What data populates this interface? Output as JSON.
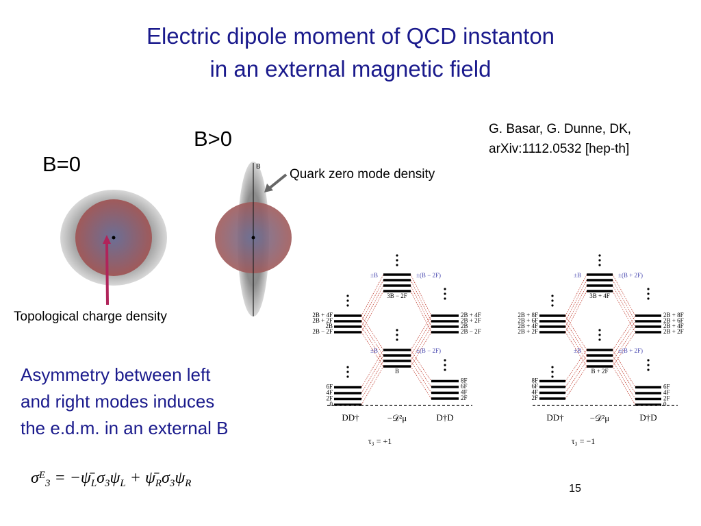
{
  "header": {
    "title_lines": [
      "Electric dipole moment of QCD instanton",
      "in an external magnetic field"
    ]
  },
  "citation": [
    "G. Basar, G. Dunne, DK,",
    "arXiv:1112.0532 [hep-th]"
  ],
  "instanton": {
    "b_zero": "B=0",
    "b_positive": "B>0",
    "axis_label": "B",
    "quark_label": "Quark zero mode density",
    "topo_label": "Topological charge density"
  },
  "body": [
    "Asymmetry between left",
    "and right modes induces",
    "the e.d.m. in an external B"
  ],
  "formula": [
    {
      "text": "σ",
      "pos": "base"
    },
    {
      "text": "E",
      "pos": "sup"
    },
    {
      "text": "3",
      "pos": "sub"
    },
    {
      "text": " = −ψ̄",
      "pos": "base"
    },
    {
      "text": "L",
      "pos": "sub"
    },
    {
      "text": "σ",
      "pos": "base"
    },
    {
      "text": "3",
      "pos": "sub"
    },
    {
      "text": "ψ",
      "pos": "base"
    },
    {
      "text": "L",
      "pos": "sub"
    },
    {
      "text": " + ψ̄",
      "pos": "base"
    },
    {
      "text": "R",
      "pos": "sub"
    },
    {
      "text": "σ",
      "pos": "base"
    },
    {
      "text": "3",
      "pos": "sub"
    },
    {
      "text": "ψ",
      "pos": "base"
    },
    {
      "text": "R",
      "pos": "sub"
    }
  ],
  "page_number": "15",
  "diagrams": [
    {
      "caption": "τ₃ = +1",
      "axis_labels": [
        "DD†",
        "−𝒟²μ",
        "D†D"
      ],
      "top": {
        "left": "±B",
        "right": "±(B − 2F)",
        "below": "3B − 2F"
      },
      "middle": {
        "left": "±B",
        "right": "±(B − 2F)",
        "below": "B"
      },
      "upper_left": [
        "2B + 4F",
        "2B + 2F",
        "2B",
        "2B − 2F"
      ],
      "upper_right": [
        "2B + 4F",
        "2B + 2F",
        "2B",
        "2B − 2F"
      ],
      "lower_left": [
        "6F",
        "4F",
        "2F",
        "0"
      ],
      "lower_right": [
        "8F",
        "6F",
        "4F",
        "2F"
      ]
    },
    {
      "caption": "τ₃ = −1",
      "axis_labels": [
        "DD†",
        "−𝒟²μ",
        "D†D"
      ],
      "top": {
        "left": "±B",
        "right": "±(B + 2F)",
        "below": "3B + 4F"
      },
      "middle": {
        "left": "±B",
        "right": "±(B + 2F)",
        "below": "B + 2F"
      },
      "upper_left": [
        "2B + 8F",
        "2B + 6F",
        "2B + 4F",
        "2B + 2F"
      ],
      "upper_right": [
        "2B + 8F",
        "2B + 6F",
        "2B + 4F",
        "2B + 2F"
      ],
      "lower_left": [
        "8F",
        "6F",
        "4F",
        "2F"
      ],
      "lower_right": [
        "6F",
        "4F",
        "2F",
        "0"
      ]
    }
  ]
}
